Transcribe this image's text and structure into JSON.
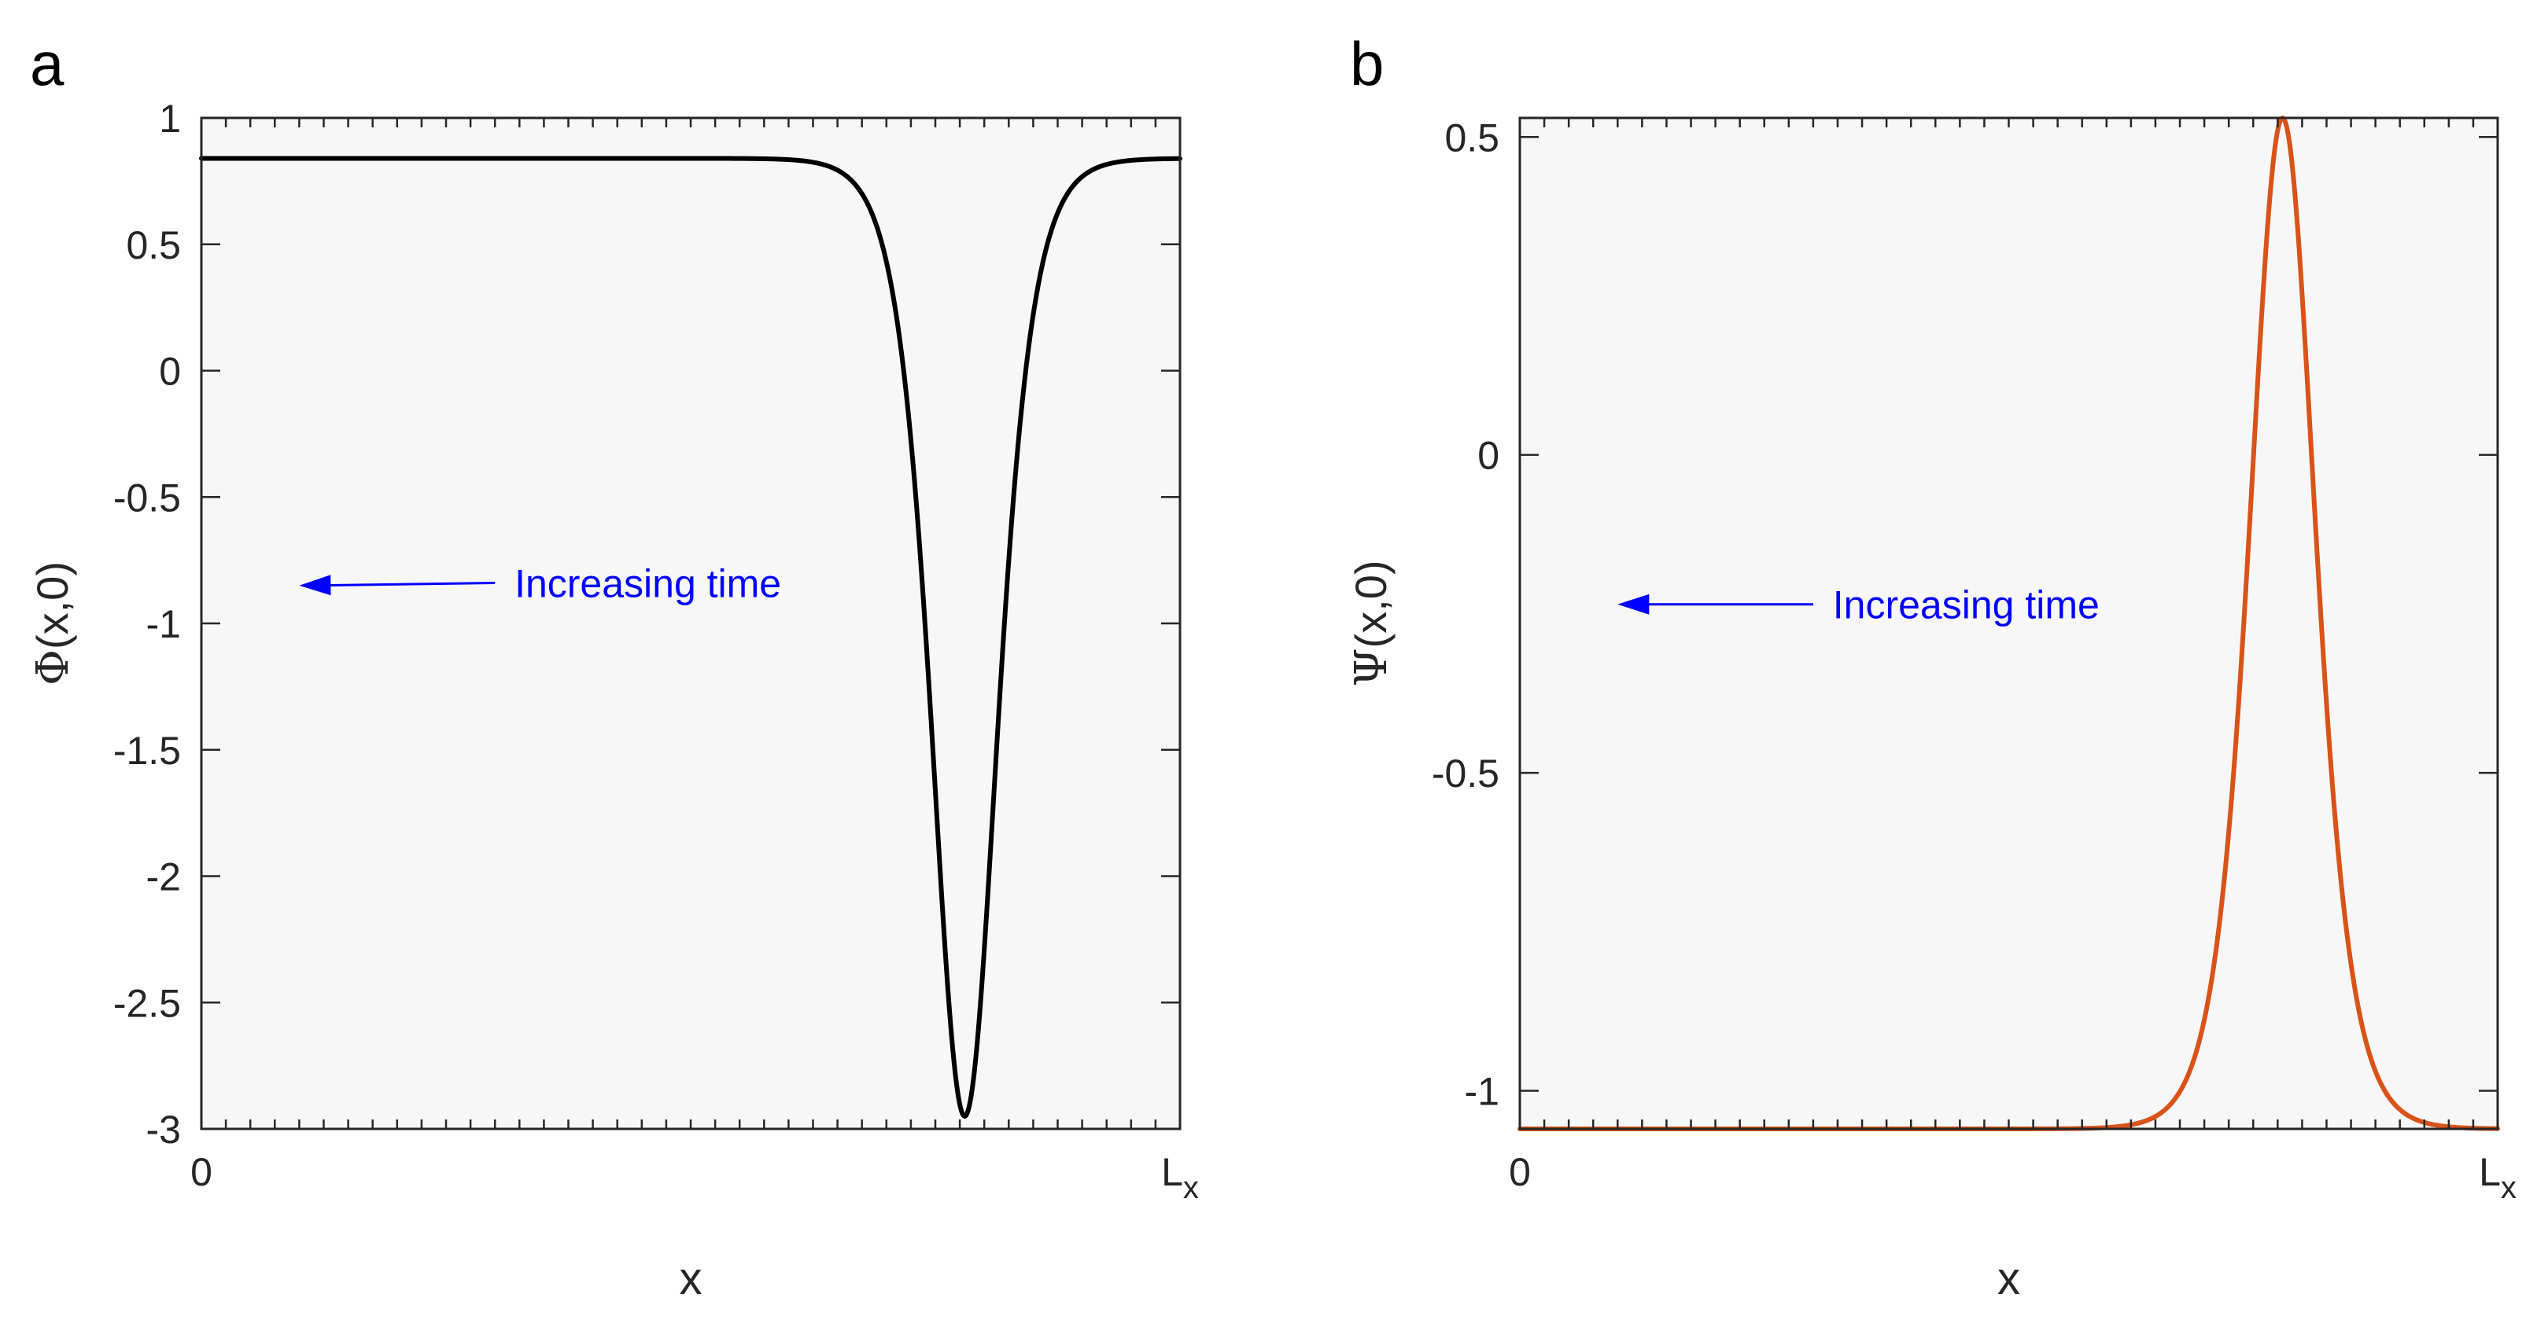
{
  "chart_data": [
    {
      "type": "line",
      "panel_label": "a",
      "title": "",
      "xlabel": "x",
      "ylabel_symbol": "Φ",
      "ylabel_args": "(x,0)",
      "xlim": [
        0,
        1
      ],
      "ylim": [
        -3,
        1
      ],
      "xtick_values": [
        0,
        1
      ],
      "xtick_labels": [
        "0",
        "L"
      ],
      "xtick_subscripts": [
        "",
        "x"
      ],
      "ytick_values": [
        1,
        0.5,
        0,
        -0.5,
        -1,
        -1.5,
        -2,
        -2.5,
        -3
      ],
      "ytick_labels": [
        "1",
        "0.5",
        "0",
        "-0.5",
        "-1",
        "-1.5",
        "-2",
        "-2.5",
        "-3"
      ],
      "minor_tick_count": 40,
      "series": [
        {
          "name": "Φ(x,0)",
          "color": "#000000",
          "model": "sech2",
          "baseline": 0.84,
          "amplitude": -3.79,
          "center": 0.78,
          "width": 0.045
        }
      ],
      "annotation": {
        "text": "Increasing time",
        "color": "#0000ff",
        "arrow_from": [
          0.3,
          -0.84
        ],
        "arrow_to": [
          0.1,
          -0.85
        ],
        "text_anchor": [
          0.32,
          -0.84
        ]
      },
      "background": "#f7f7f7"
    },
    {
      "type": "line",
      "panel_label": "b",
      "title": "",
      "xlabel": "x",
      "ylabel_symbol": "Ψ",
      "ylabel_args": "(x,0)",
      "xlim": [
        0,
        1
      ],
      "ylim": [
        -1.06,
        0.53
      ],
      "xtick_values": [
        0,
        1
      ],
      "xtick_labels": [
        "0",
        "L"
      ],
      "xtick_subscripts": [
        "",
        "x"
      ],
      "ytick_values": [
        0.5,
        0,
        -0.5,
        -1
      ],
      "ytick_labels": [
        "0.5",
        "0",
        "-0.5",
        "-1"
      ],
      "minor_tick_count": 40,
      "series": [
        {
          "name": "Ψ(x,0)",
          "color": "#d95319",
          "model": "sech2",
          "baseline": -1.06,
          "amplitude": 1.59,
          "center": 0.78,
          "width": 0.045
        }
      ],
      "annotation": {
        "text": "Increasing time",
        "color": "#0000ff",
        "arrow_from": [
          0.3,
          -0.235
        ],
        "arrow_to": [
          0.1,
          -0.235
        ],
        "text_anchor": [
          0.32,
          -0.235
        ]
      },
      "background": "#f7f7f7"
    }
  ]
}
